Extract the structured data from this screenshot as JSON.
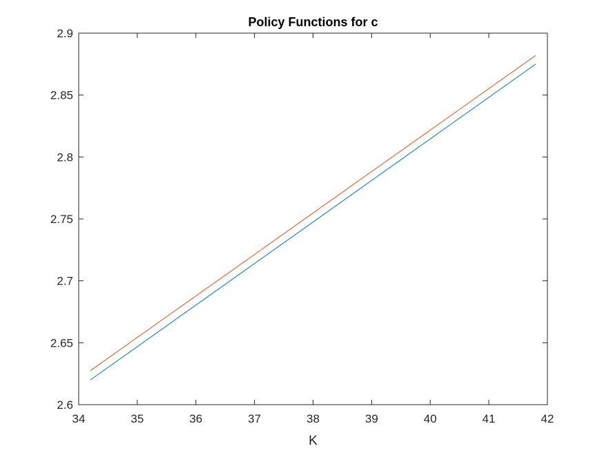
{
  "chart_data": {
    "type": "line",
    "title": "Policy Functions for c",
    "xlabel": "K",
    "ylabel": "",
    "xlim": [
      34,
      42
    ],
    "ylim": [
      2.6,
      2.9
    ],
    "xticks": [
      34,
      35,
      36,
      37,
      38,
      39,
      40,
      41,
      42
    ],
    "yticks": [
      2.6,
      2.65,
      2.7,
      2.75,
      2.8,
      2.85,
      2.9
    ],
    "xtick_labels": [
      "34",
      "35",
      "36",
      "37",
      "38",
      "39",
      "40",
      "41",
      "42"
    ],
    "ytick_labels": [
      "2.6",
      "2.65",
      "2.7",
      "2.75",
      "2.8",
      "2.85",
      "2.9"
    ],
    "grid": false,
    "legend": "none",
    "series": [
      {
        "color": "#0072BD",
        "x": [
          34.2,
          41.8
        ],
        "y": [
          2.62,
          2.875
        ]
      },
      {
        "color": "#D95319",
        "x": [
          34.2,
          41.8
        ],
        "y": [
          2.6275,
          2.882
        ]
      }
    ]
  }
}
